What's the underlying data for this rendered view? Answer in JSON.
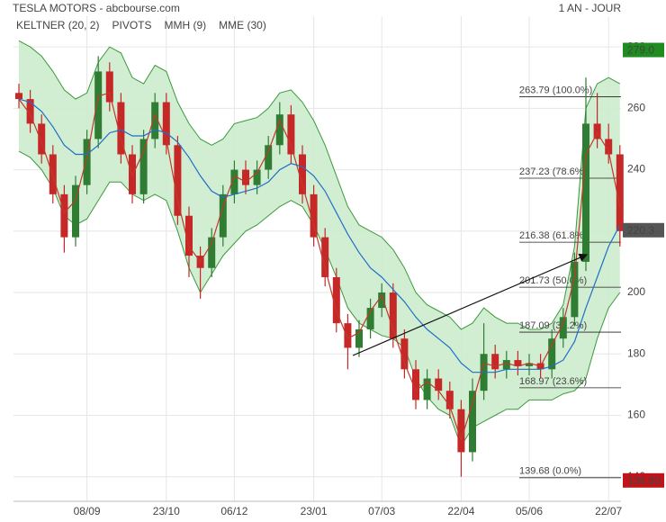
{
  "chart_data": {
    "type": "candlestick",
    "title": "TESLA MOTORS - abcbourse.com",
    "period": "1 AN - JOUR",
    "categories": [
      null,
      null,
      null,
      null,
      null,
      null,
      "08/09",
      null,
      null,
      null,
      null,
      null,
      null,
      "23/10",
      null,
      null,
      null,
      null,
      null,
      "06/12",
      null,
      null,
      null,
      null,
      null,
      null,
      "23/01",
      null,
      null,
      null,
      null,
      null,
      "07/03",
      null,
      null,
      null,
      null,
      null,
      null,
      "22/04",
      null,
      null,
      null,
      null,
      null,
      "05/06",
      null,
      null,
      null,
      null,
      null,
      null,
      "22/07",
      null
    ],
    "open": [
      265,
      263,
      255,
      245,
      232,
      218,
      235,
      250,
      272,
      262,
      245,
      232,
      250,
      262,
      248,
      225,
      212,
      208,
      218,
      232,
      240,
      235,
      240,
      248,
      258,
      245,
      232,
      218,
      205,
      190,
      182,
      188,
      195,
      200,
      185,
      175,
      165,
      172,
      168,
      162,
      148,
      168,
      180,
      175,
      178,
      176,
      177,
      175,
      185,
      192,
      210,
      255,
      250,
      245
    ],
    "high": [
      268,
      266,
      258,
      248,
      235,
      238,
      253,
      277,
      275,
      265,
      248,
      253,
      265,
      265,
      251,
      228,
      215,
      221,
      235,
      243,
      243,
      243,
      251,
      262,
      261,
      248,
      235,
      221,
      208,
      193,
      191,
      198,
      203,
      203,
      188,
      178,
      175,
      175,
      171,
      165,
      172,
      190,
      183,
      181,
      181,
      180,
      180,
      188,
      195,
      213,
      270,
      265,
      255,
      248
    ],
    "low": [
      260,
      252,
      242,
      229,
      213,
      215,
      232,
      247,
      259,
      242,
      229,
      229,
      247,
      245,
      222,
      205,
      198,
      205,
      215,
      229,
      232,
      232,
      237,
      245,
      242,
      229,
      215,
      202,
      187,
      175,
      179,
      185,
      192,
      182,
      172,
      162,
      162,
      165,
      159,
      140,
      145,
      165,
      172,
      172,
      173,
      173,
      172,
      172,
      182,
      189,
      207,
      247,
      242,
      215
    ],
    "close": [
      263,
      255,
      245,
      232,
      218,
      235,
      250,
      272,
      262,
      245,
      232,
      250,
      262,
      248,
      225,
      212,
      208,
      218,
      232,
      240,
      235,
      240,
      248,
      258,
      245,
      232,
      218,
      205,
      190,
      182,
      188,
      195,
      200,
      185,
      175,
      165,
      172,
      168,
      162,
      148,
      168,
      180,
      175,
      178,
      176,
      177,
      175,
      185,
      192,
      210,
      255,
      250,
      245,
      220
    ],
    "up_color": "#2e7d32",
    "down_color": "#c62828",
    "keltner": {
      "name": "KELTNER (20, 2)",
      "color": "#3a9a3a",
      "fill": "#cdeccd",
      "upper": [
        282,
        280,
        277,
        272,
        266,
        263,
        265,
        275,
        280,
        278,
        270,
        268,
        274,
        272,
        262,
        255,
        250,
        248,
        250,
        255,
        256,
        257,
        260,
        265,
        266,
        262,
        256,
        248,
        238,
        228,
        222,
        220,
        218,
        214,
        208,
        200,
        196,
        194,
        192,
        188,
        190,
        195,
        192,
        190,
        190,
        188,
        188,
        190,
        196,
        215,
        260,
        268,
        270,
        268
      ],
      "lower": [
        246,
        244,
        240,
        234,
        225,
        222,
        224,
        230,
        236,
        236,
        232,
        230,
        232,
        230,
        220,
        208,
        200,
        206,
        212,
        216,
        220,
        222,
        225,
        228,
        230,
        228,
        222,
        214,
        205,
        195,
        190,
        188,
        186,
        185,
        182,
        172,
        166,
        162,
        160,
        150,
        156,
        158,
        160,
        162,
        162,
        165,
        165,
        165,
        167,
        168,
        172,
        185,
        195,
        200
      ]
    },
    "pivots": {
      "name": "PIVOTS",
      "color": "#222222",
      "levels": [
        {
          "value": 263.79,
          "label": "263.79  (100.0%)"
        },
        {
          "value": 237.23,
          "label": "237.23  (78.6%)"
        },
        {
          "value": 216.38,
          "label": "216.38  (61.8%)"
        },
        {
          "value": 201.73,
          "label": "201.73  (50.0%)"
        },
        {
          "value": 187.09,
          "label": "187.09  (38.2%)"
        },
        {
          "value": 168.97,
          "label": "168.97  (23.6%)"
        },
        {
          "value": 139.68,
          "label": "139.68  (0.0%)"
        }
      ]
    },
    "series": [
      {
        "name": "MMH (9)",
        "color": "#c0392b",
        "values": [
          263,
          258,
          249,
          238,
          226,
          230,
          244,
          264,
          265,
          250,
          238,
          246,
          258,
          250,
          230,
          215,
          210,
          216,
          228,
          238,
          236,
          239,
          246,
          256,
          248,
          235,
          222,
          208,
          194,
          185,
          187,
          194,
          199,
          188,
          177,
          168,
          171,
          168,
          163,
          152,
          164,
          177,
          176,
          177,
          176,
          177,
          176,
          183,
          190,
          205,
          245,
          252,
          246,
          228
        ]
      },
      {
        "name": "MME (30)",
        "color": "#1f6fc5",
        "values": [
          263,
          262,
          259,
          254,
          248,
          245,
          245,
          248,
          252,
          253,
          251,
          251,
          253,
          252,
          249,
          244,
          238,
          233,
          231,
          232,
          233,
          234,
          236,
          240,
          242,
          241,
          238,
          233,
          226,
          219,
          213,
          208,
          205,
          201,
          197,
          192,
          188,
          185,
          182,
          177,
          174,
          174,
          174,
          175,
          175,
          175,
          175,
          176,
          178,
          184,
          195,
          205,
          215,
          222
        ]
      }
    ],
    "ylim": [
      132,
      290
    ],
    "yticks": [
      140,
      160,
      180,
      200,
      220,
      240,
      260,
      280
    ],
    "grid": true,
    "price_tags": [
      {
        "value": 279,
        "label": "279.0",
        "color": "#1e8c1e"
      },
      {
        "value": 220.3,
        "label": "220.3",
        "color": "#555555"
      },
      {
        "value": 138.8,
        "label": "138.80",
        "color": "#c0141a"
      }
    ]
  }
}
